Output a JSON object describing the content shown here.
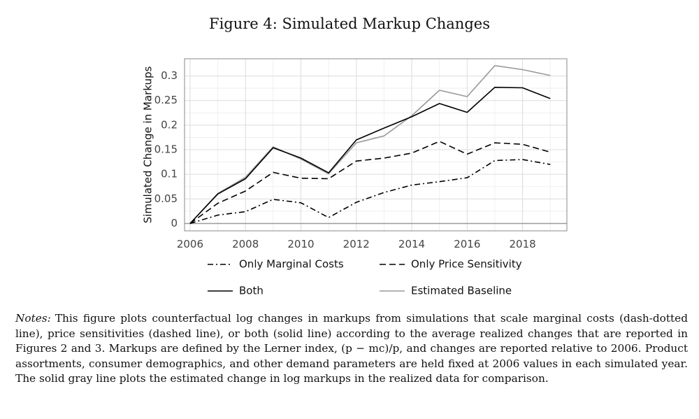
{
  "figure_title": "Figure 4: Simulated Markup Changes",
  "notes": {
    "label": "Notes:",
    "text": "This figure plots counterfactual log changes in markups from simulations that scale marginal costs (dash-dotted line), price sensitivities (dashed line), or both (solid line) according to the average realized changes that are reported in Figures 2 and 3. Markups are defined by the Lerner index, (p − mc)/p, and changes are reported relative to 2006. Product assortments, consumer demographics, and other demand parameters are held fixed at 2006 values in each simulated year. The solid gray line plots the estimated change in log markups in the realized data for comparison."
  },
  "chart_data": {
    "type": "line",
    "title": "Figure 4: Simulated Markup Changes",
    "xlabel": "",
    "ylabel": "Simulated Change in Markups",
    "xlim": [
      2005.8,
      2019.6
    ],
    "ylim": [
      -0.015,
      0.335
    ],
    "x_ticks": [
      2006,
      2008,
      2010,
      2012,
      2014,
      2016,
      2018
    ],
    "x_tick_labels": [
      "2006",
      "2008",
      "2010",
      "2012",
      "2014",
      "2016",
      "2018"
    ],
    "y_ticks": [
      0,
      0.05,
      0.1,
      0.15,
      0.2,
      0.25,
      0.3
    ],
    "y_tick_labels": [
      "0",
      "0.05",
      "0.1",
      "0.15",
      "0.2",
      "0.25",
      "0.3"
    ],
    "grid": true,
    "legend_placement": "bottom",
    "x": [
      2006,
      2007,
      2008,
      2009,
      2010,
      2011,
      2012,
      2013,
      2014,
      2015,
      2016,
      2017,
      2018,
      2019
    ],
    "series": [
      {
        "name": "Only Marginal Costs",
        "style": "dash-dot",
        "color": "#000000",
        "values": [
          0,
          0.017,
          0.024,
          0.049,
          0.042,
          0.012,
          0.043,
          0.063,
          0.078,
          0.085,
          0.093,
          0.128,
          0.13,
          0.12
        ]
      },
      {
        "name": "Only Price Sensitivity",
        "style": "dashed",
        "color": "#000000",
        "values": [
          0,
          0.041,
          0.066,
          0.104,
          0.092,
          0.091,
          0.127,
          0.133,
          0.143,
          0.167,
          0.141,
          0.164,
          0.161,
          0.145
        ]
      },
      {
        "name": "Both",
        "style": "solid",
        "color": "#000000",
        "values": [
          0,
          0.06,
          0.091,
          0.154,
          0.133,
          0.103,
          0.17,
          0.194,
          0.217,
          0.244,
          0.226,
          0.277,
          0.276,
          0.254
        ]
      },
      {
        "name": "Estimated Baseline",
        "style": "solid",
        "color": "#9a9a9a",
        "values": [
          0,
          0.061,
          0.094,
          0.156,
          0.131,
          0.101,
          0.164,
          0.178,
          0.219,
          0.271,
          0.258,
          0.321,
          0.313,
          0.301
        ]
      }
    ]
  }
}
